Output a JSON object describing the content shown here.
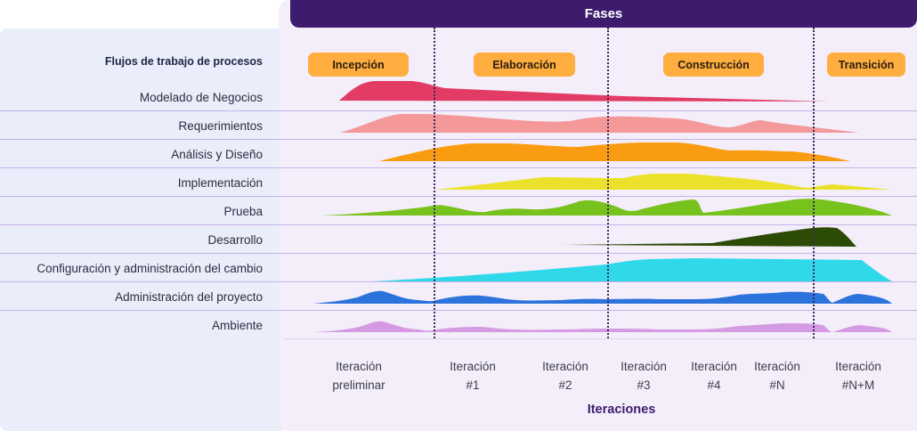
{
  "header": {
    "title": "Fases"
  },
  "workflows": {
    "title": "Flujos de trabajo de procesos",
    "items": [
      {
        "label": "Modelado de Negocios",
        "color": "#e23b64"
      },
      {
        "label": "Requerimientos",
        "color": "#f4989a"
      },
      {
        "label": "Análisis y Diseño",
        "color": "#fa9c12"
      },
      {
        "label": "Implementación",
        "color": "#ece12a"
      },
      {
        "label": "Prueba",
        "color": "#78c21d"
      },
      {
        "label": "Desarrollo",
        "color": "#2c4b05"
      },
      {
        "label": "Configuración y administración del cambio",
        "color": "#2fd9ea"
      },
      {
        "label": "Administración del proyecto",
        "color": "#2c73dc"
      },
      {
        "label": "Ambiente",
        "color": "#d69ae2"
      }
    ]
  },
  "phases": [
    {
      "label": "Incepción"
    },
    {
      "label": "Elaboración"
    },
    {
      "label": "Construcción"
    },
    {
      "label": "Transición"
    }
  ],
  "iterations": {
    "title": "Iteraciones",
    "items": [
      {
        "line1": "Iteración",
        "line2": "preliminar"
      },
      {
        "line1": "Iteración",
        "line2": "#1"
      },
      {
        "line1": "Iteración",
        "line2": "#2"
      },
      {
        "line1": "Iteración",
        "line2": "#3"
      },
      {
        "line1": "Iteración",
        "line2": "#4"
      },
      {
        "line1": "Iteración",
        "line2": "#N"
      },
      {
        "line1": "Iteración",
        "line2": "#N+M"
      }
    ]
  },
  "colors": {
    "header_bg": "#3d1c6e",
    "phase_pill": "#ffad3e",
    "left_panel": "#eaeefb",
    "main_panel": "#f4eefa"
  }
}
